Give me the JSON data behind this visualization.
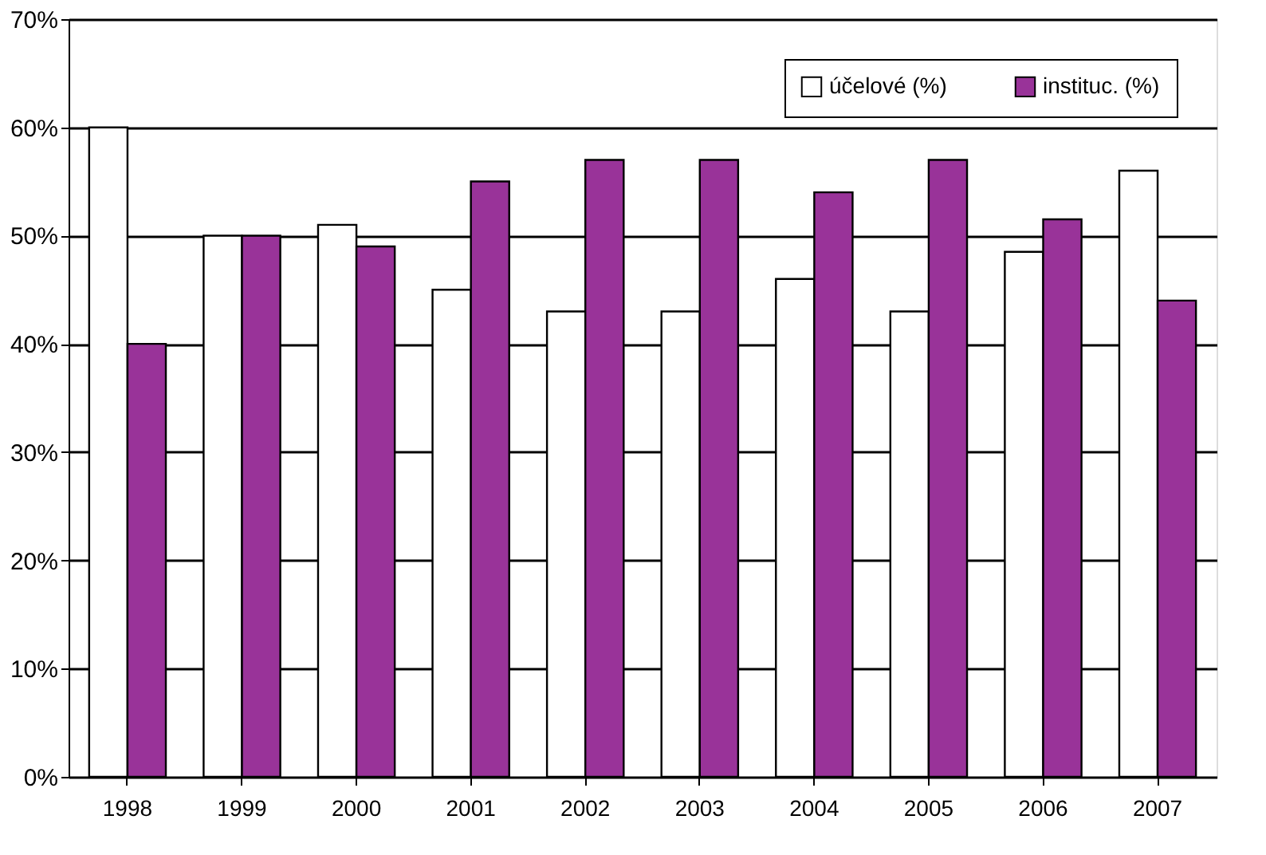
{
  "chart_data": {
    "type": "bar",
    "categories": [
      "1998",
      "1999",
      "2000",
      "2001",
      "2002",
      "2003",
      "2004",
      "2005",
      "2006",
      "2007"
    ],
    "series": [
      {
        "name": "účelové (%)",
        "color": "#ffffff",
        "values": [
          60,
          50,
          51,
          45,
          43,
          43,
          46,
          43,
          48.5,
          56
        ]
      },
      {
        "name": "instituc. (%)",
        "color": "#993399",
        "values": [
          40,
          50,
          49,
          55,
          57,
          57,
          54,
          57,
          51.5,
          44
        ]
      }
    ],
    "ylim": [
      0,
      70
    ],
    "yticks": [
      {
        "value": 0,
        "label": "0%"
      },
      {
        "value": 10,
        "label": "10%"
      },
      {
        "value": 20,
        "label": "20%"
      },
      {
        "value": 30,
        "label": "30%"
      },
      {
        "value": 40,
        "label": "40%"
      },
      {
        "value": 50,
        "label": "50%"
      },
      {
        "value": 60,
        "label": "60%"
      },
      {
        "value": 70,
        "label": "70%"
      }
    ],
    "grid": "y",
    "legend": "top right"
  }
}
